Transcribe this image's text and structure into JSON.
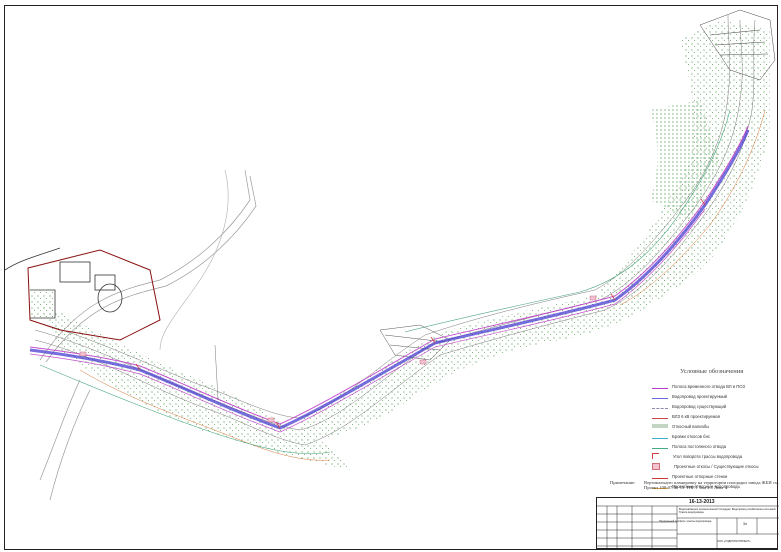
{
  "drawing": {
    "title": "Условные обозначения",
    "legend": [
      {
        "label": "Полоса временного отвода ВЛ и ПОЗ",
        "color": "#b43cc8",
        "style": "solid"
      },
      {
        "label": "Водопровод проектируемый",
        "color": "#6a6ad8",
        "style": "solid"
      },
      {
        "label": "Водопровод существующий",
        "color": "#8888aa",
        "style": "dashed"
      },
      {
        "label": "ВЛЗ 6 кВ проектируемая",
        "color": "#cc4444",
        "style": "solid"
      },
      {
        "label": "Откосный валиобы",
        "color": "#88aa88",
        "style": "hatch"
      },
      {
        "label": "Бровки откосов бнс",
        "color": "#44aacc",
        "style": "solid"
      },
      {
        "label": "Полоса постоянного отвода",
        "color": "#44aa88",
        "style": "solid"
      },
      {
        "label": "Угол поворота трассы водопровода",
        "color": "#d04040",
        "style": "angle"
      },
      {
        "label": "Проектные откосы / Существующие откосы",
        "color": "#d07070",
        "style": "box"
      },
      {
        "label": "Проектные отпорные стенки",
        "color": "#c83a3a",
        "style": "solid"
      },
      {
        "label": "Проектные отпорные водопроводы",
        "color": "#d8a040",
        "style": "solid"
      }
    ],
    "note": {
      "label": "Примечание:",
      "text": "Вертикальную планировку на территории площадки завода ЖБИ см. Проект 109-07/06-13-ТПР.1 Том 2.1 Лист 4"
    },
    "stamp": {
      "code": "16-13-2013",
      "title_main": "Водоснабжение промышленной площадки. Водопровод хозяйственно-питьевой. Трасса водопровода",
      "title_sub": "Продольный профиль трассы водопровода",
      "sheet": "3л",
      "organization": "ООО «ГИДРОТЕХПРОЕКТ»"
    }
  }
}
